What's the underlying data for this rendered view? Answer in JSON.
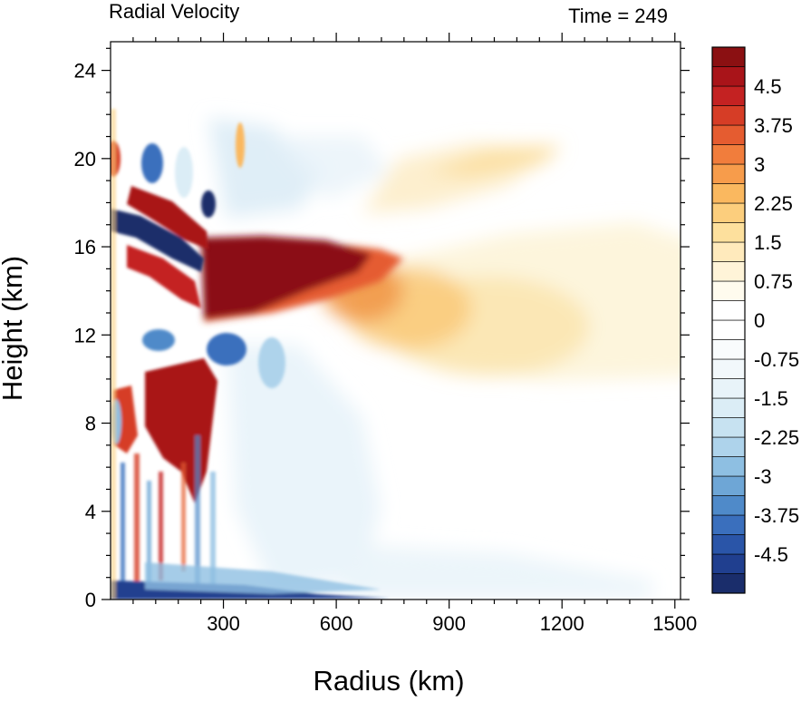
{
  "chart_data": {
    "type": "heatmap",
    "title_left": "Radial Velocity",
    "title_right": "Time = 249",
    "xlabel": "Radius (km)",
    "ylabel": "Height (km)",
    "xlim": [
      0,
      1515
    ],
    "ylim": [
      0,
      25.3
    ],
    "x_ticks": [
      300,
      600,
      900,
      1200,
      1500
    ],
    "x_tick_labels": [
      "300",
      "600",
      "900",
      "1200",
      "1500"
    ],
    "y_ticks": [
      0,
      4,
      8,
      12,
      16,
      20,
      24
    ],
    "y_tick_labels": [
      "0",
      "4",
      "8",
      "12",
      "16",
      "20",
      "24"
    ],
    "colorbar": {
      "min": -5.25,
      "max": 5.25,
      "step": 0.375,
      "labels": [
        "4.5",
        "3.75",
        "3",
        "2.25",
        "1.5",
        "0.75",
        "0",
        "-0.75",
        "-1.5",
        "-2.25",
        "-3",
        "-3.75",
        "-4.5"
      ],
      "label_values": [
        4.5,
        3.75,
        3,
        2.25,
        1.5,
        0.75,
        0,
        -0.75,
        -1.5,
        -2.25,
        -3,
        -3.75,
        -4.5
      ],
      "colors": [
        "#1a2d6b",
        "#203f8f",
        "#2a55a8",
        "#3a6fbd",
        "#4f8ac9",
        "#6ea6d6",
        "#8ebfe2",
        "#aed3eb",
        "#c7e2f1",
        "#dbedf6",
        "#e8f3f9",
        "#f2f8fb",
        "#f9fcfd",
        "#ffffff",
        "#ffffff",
        "#fffbee",
        "#fff4d8",
        "#ffeabc",
        "#fde09d",
        "#fcce7d",
        "#fab85f",
        "#f79c4b",
        "#f17d3c",
        "#e55c30",
        "#d63d26",
        "#c42222",
        "#a91419",
        "#8b1012"
      ]
    },
    "features": [
      {
        "name": "upper-level outflow jet",
        "x_range": [
          230,
          1250
        ],
        "z_range": [
          9.5,
          20.5
        ],
        "peak": 5.25
      },
      {
        "name": "inner-core alternating bands",
        "x_range": [
          0,
          260
        ],
        "z_range": [
          0,
          22
        ],
        "peak": 5.25
      },
      {
        "name": "boundary-layer inflow",
        "x_range": [
          0,
          1300
        ],
        "z_range": [
          0,
          3
        ],
        "peak": -5.25
      },
      {
        "name": "mid-level inflow",
        "x_range": [
          230,
          700
        ],
        "z_range": [
          4,
          13
        ],
        "peak": -2.5
      }
    ]
  }
}
